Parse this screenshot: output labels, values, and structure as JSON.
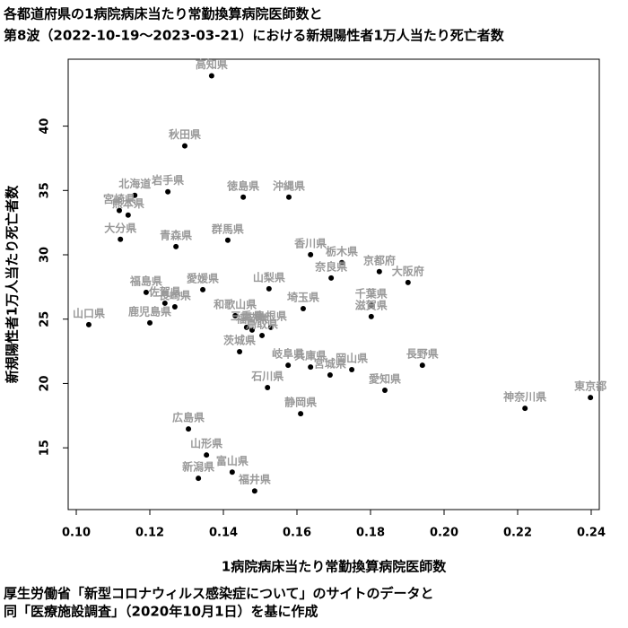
{
  "chart_data": {
    "type": "scatter",
    "title": [
      "各都道府県の1病院病床当たり常勤換算病院医師数と",
      "第8波（2022-10-19〜2023-03-21）における新規陽性者1万人当たり死亡者数"
    ],
    "x_label": "1病院病床当たり常勤換算病院医師数",
    "y_label": "新規陽性者1万人当たり死亡者数",
    "caption": [
      "厚生労働省「新型コロナウィルス感染症について」のサイトのデータと",
      "同「医療施設調査」（2020年10月1日）を基に作成"
    ],
    "xlim": [
      0.0978,
      0.2422
    ],
    "ylim": [
      10.2,
      45.2
    ],
    "xticks": [
      {
        "value": 0.1,
        "label": "0.10"
      },
      {
        "value": 0.12,
        "label": "0.12"
      },
      {
        "value": 0.14,
        "label": "0.14"
      },
      {
        "value": 0.16,
        "label": "0.16"
      },
      {
        "value": 0.18,
        "label": "0.18"
      },
      {
        "value": 0.2,
        "label": "0.20"
      },
      {
        "value": 0.22,
        "label": "0.22"
      },
      {
        "value": 0.24,
        "label": "0.24"
      }
    ],
    "yticks": [
      15,
      20,
      25,
      30,
      35,
      40
    ],
    "color": "#000000",
    "label_color": "#999999",
    "labels": [
      "高知県",
      "秋田県",
      "北海道",
      "岩手県",
      "宮崎県",
      "熊本県",
      "徳島県",
      "沖縄県",
      "大分県",
      "青森県",
      "群馬県",
      "香川県",
      "栃木県",
      "奈良県",
      "京都府",
      "大阪府",
      "福島県",
      "愛媛県",
      "山梨県",
      "佐賀県",
      "長崎県",
      "和歌山県",
      "埼玉県",
      "千葉県",
      "滋賀県",
      "鹿児島県",
      "山口県",
      "三重県",
      "福岡県",
      "島根県",
      "鳥取県",
      "茨城県",
      "岐阜県",
      "兵庫県",
      "宮城県",
      "岡山県",
      "長野県",
      "愛知県",
      "石川県",
      "静岡県",
      "神奈川県",
      "東京都",
      "広島県",
      "山形県",
      "富山県",
      "新潟県",
      "福井県"
    ],
    "x": [
      0.1368,
      0.1295,
      0.1159,
      0.1249,
      0.1117,
      0.1141,
      0.1454,
      0.1578,
      0.112,
      0.1271,
      0.1412,
      0.1637,
      0.1722,
      0.1693,
      0.1824,
      0.1902,
      0.119,
      0.1344,
      0.1524,
      0.1241,
      0.1268,
      0.1432,
      0.1617,
      0.1802,
      0.1802,
      0.12,
      0.1034,
      0.1463,
      0.1478,
      0.1529,
      0.1505,
      0.1444,
      0.1576,
      0.1637,
      0.169,
      0.1749,
      0.1941,
      0.1839,
      0.152,
      0.161,
      0.222,
      0.2398,
      0.1305,
      0.1354,
      0.1424,
      0.1332,
      0.1485
    ],
    "values": [
      43.91,
      38.46,
      34.62,
      34.9,
      33.44,
      33.09,
      34.48,
      34.48,
      31.2,
      30.64,
      31.13,
      30.01,
      29.39,
      28.2,
      28.69,
      27.85,
      27.08,
      27.29,
      27.36,
      26.24,
      25.96,
      25.27,
      25.82,
      26.1,
      25.2,
      24.71,
      24.57,
      24.36,
      24.15,
      24.36,
      23.73,
      22.47,
      21.42,
      21.28,
      20.66,
      21.08,
      21.42,
      19.47,
      19.68,
      17.65,
      18.07,
      18.91,
      16.47,
      14.44,
      13.11,
      12.63,
      11.65
    ]
  }
}
